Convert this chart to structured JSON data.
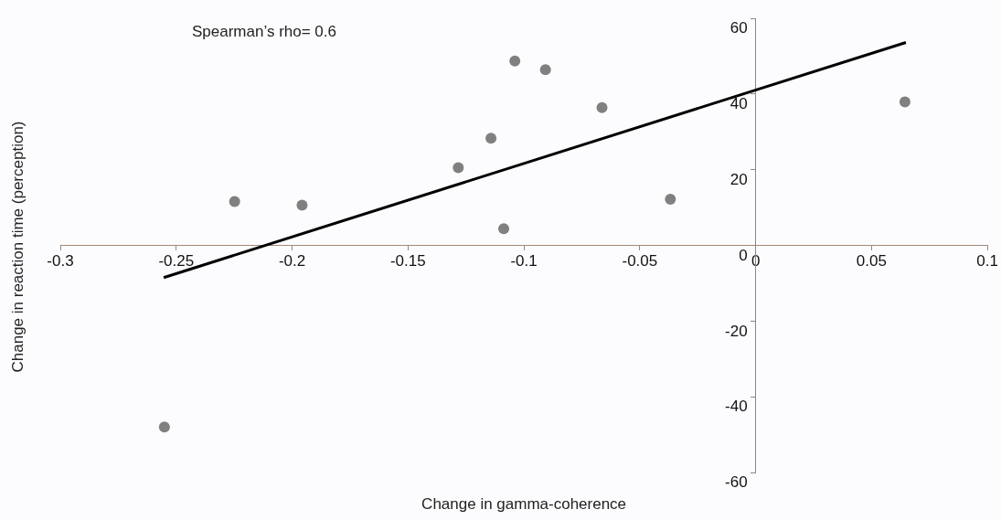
{
  "chart_data": {
    "type": "scatter",
    "xlabel": "Change in gamma-coherence",
    "ylabel": "Change in reaction time (perception)",
    "annotations": [
      "Spearman’s rho= 0.6"
    ],
    "xlim": [
      -0.3,
      0.1
    ],
    "ylim": [
      -60,
      60
    ],
    "xticks": [
      -0.3,
      -0.25,
      -0.2,
      -0.15,
      -0.1,
      -0.05,
      0,
      0.05,
      0.1
    ],
    "yticks": [
      -60,
      -40,
      -20,
      0,
      20,
      40,
      60
    ],
    "grid": false,
    "legend": false,
    "marker": "circle",
    "series": [
      {
        "color": "#808080",
        "x": [
          -0.2551,
          -0.2248,
          -0.1957,
          -0.1283,
          -0.1142,
          -0.1087,
          -0.1039,
          -0.0907,
          -0.0663,
          -0.0368,
          0.0644
        ],
        "values": [
          -48.0,
          11.6,
          10.6,
          20.5,
          28.3,
          4.4,
          48.7,
          46.4,
          36.4,
          12.2,
          37.9
        ]
      },
      {
        "type": "line",
        "color": "#000000",
        "marker": "none",
        "line_style": "solid",
        "x": [
          -0.2554,
          0.0648
        ],
        "values": [
          -8.5,
          53.6
        ]
      }
    ]
  }
}
